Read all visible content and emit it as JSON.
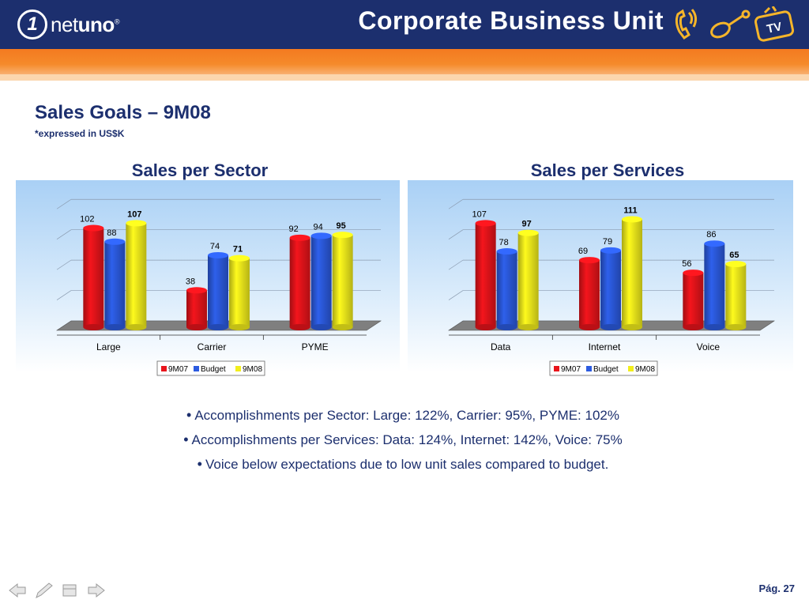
{
  "header": {
    "logo_number": "1",
    "logo_text_light": "net",
    "logo_text_bold": "uno",
    "logo_mark": "®",
    "title": "Corporate Business Unit",
    "icons": [
      "phone-icon",
      "mouse-icon",
      "tv-icon"
    ],
    "tv_label": "TV"
  },
  "page": {
    "title": "Sales Goals – 9M08",
    "subtitle": "*expressed in US$K",
    "page_number": "Pág. 27"
  },
  "colors": {
    "navy": "#1c2f6e",
    "orange": "#f47a20",
    "series_9M07": "#e8141b",
    "series_Budget": "#2c5be0",
    "series_9M08": "#f2ee1c"
  },
  "chart_data": [
    {
      "type": "bar",
      "title": "Sales per Sector",
      "categories": [
        "Large",
        "Carrier",
        "PYME"
      ],
      "series": [
        {
          "name": "9M07",
          "values": [
            102,
            38,
            92
          ]
        },
        {
          "name": "Budget",
          "values": [
            88,
            74,
            94
          ]
        },
        {
          "name": "9M08",
          "values": [
            107,
            71,
            95
          ]
        }
      ],
      "ylim": [
        0,
        130
      ],
      "grid": true,
      "legend": "bottom",
      "bold_series": "9M08"
    },
    {
      "type": "bar",
      "title": "Sales per Services",
      "categories": [
        "Data",
        "Internet",
        "Voice"
      ],
      "series": [
        {
          "name": "9M07",
          "values": [
            107,
            69,
            56
          ]
        },
        {
          "name": "Budget",
          "values": [
            78,
            79,
            86
          ]
        },
        {
          "name": "9M08",
          "values": [
            97,
            111,
            65
          ]
        }
      ],
      "ylim": [
        0,
        130
      ],
      "grid": true,
      "legend": "bottom",
      "bold_series": "9M08"
    }
  ],
  "bullets": [
    "Accomplishments per Sector:  Large: 122%, Carrier: 95%, PYME: 102%",
    "Accomplishments per Services: Data: 124%, Internet: 142%, Voice: 75%",
    "Voice below expectations due to low unit sales compared to budget."
  ],
  "footer_nav": [
    "prev-arrow-icon",
    "pen-icon",
    "menu-icon",
    "next-arrow-icon"
  ]
}
